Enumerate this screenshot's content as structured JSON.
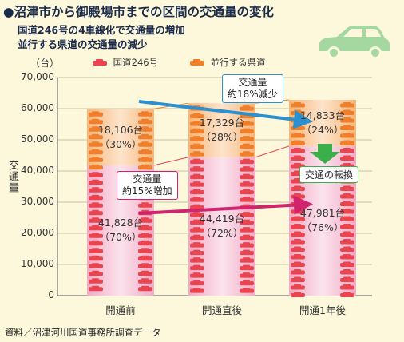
{
  "title": "●沼津市から御殿場市までの区間の交通量の変化",
  "subtitle_line1": "国道246号の4車線化で交通量の増加",
  "subtitle_line2": "並行する県道の交通量の減少",
  "unit_label": "（台）",
  "y_axis_label": "交通量",
  "source": "資料／沼津河川国道事務所調査データ",
  "callouts": {
    "decrease_line1": "交通量",
    "decrease_line2": "約18%減少",
    "increase_line1": "交通量",
    "increase_line2": "約15%増加",
    "conversion": "交通の転換"
  },
  "colors": {
    "route246": "#e98fb2",
    "prefectural_road": "#f6b67a",
    "decrease_arrow": "#2a90cf",
    "increase_arrow": "#d2236e",
    "conversion_arrow": "#3bb04a"
  },
  "chart_data": {
    "type": "bar",
    "stacked": true,
    "categories": [
      "開通前",
      "開通直後",
      "開通1年後"
    ],
    "series": [
      {
        "name": "国道246号",
        "values": [
          41828,
          44419,
          47981
        ],
        "labels": [
          "41,828台",
          "44,419台",
          "47,981台"
        ],
        "percents": [
          "（70%）",
          "（72%）",
          "（76%）"
        ]
      },
      {
        "name": "並行する県道",
        "values": [
          18106,
          17329,
          14833
        ],
        "labels": [
          "18,106台",
          "17,329台",
          "14,833台"
        ],
        "percents": [
          "（30%）",
          "（28%）",
          "（24%）"
        ]
      }
    ],
    "ylim": [
      0,
      70000
    ],
    "yticks": [
      "0",
      "10,000",
      "20,000",
      "30,000",
      "40,000",
      "50,000",
      "60,000",
      "70,000"
    ],
    "ytick_values": [
      0,
      10000,
      20000,
      30000,
      40000,
      50000,
      60000,
      70000
    ],
    "grid": true,
    "legend_position": "top"
  }
}
